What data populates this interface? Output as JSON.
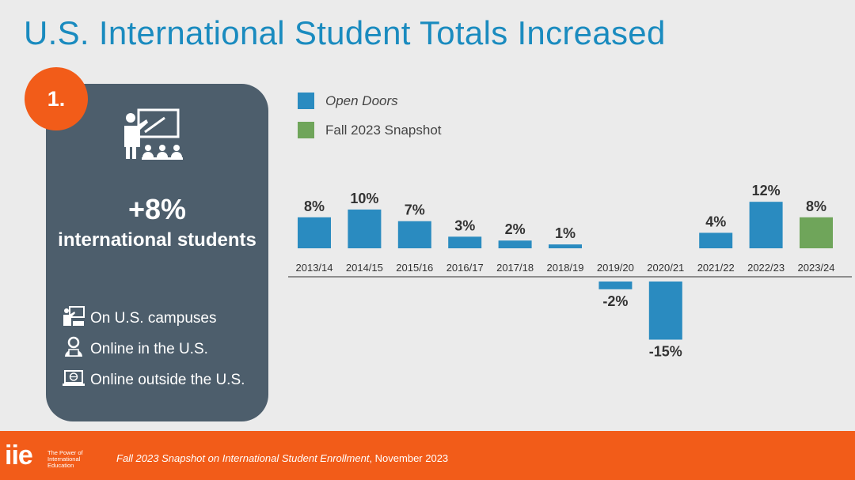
{
  "slide": {
    "title": "U.S. International Student Totals Increased"
  },
  "panel": {
    "badge": "1.",
    "big_value": "+8%",
    "big_label": "international students",
    "icon": "teacher-presentation-icon",
    "modes": [
      {
        "label": "On U.S. campuses",
        "icon": "classroom-icon"
      },
      {
        "label": "Online in the U.S.",
        "icon": "online-user-icon"
      },
      {
        "label": "Online outside the U.S.",
        "icon": "laptop-globe-icon"
      }
    ]
  },
  "legend": [
    {
      "label": "Open Doors",
      "color": "#2a8bc0",
      "italic": true
    },
    {
      "label": "Fall 2023 Snapshot",
      "color": "#6fa55a",
      "italic": false
    }
  ],
  "chart_data": {
    "type": "bar",
    "categories": [
      "2013/14",
      "2014/15",
      "2015/16",
      "2016/17",
      "2017/18",
      "2018/19",
      "2019/20",
      "2020/21",
      "2021/22",
      "2022/23",
      "2023/24"
    ],
    "series": [
      {
        "name": "Open Doors",
        "color": "#2a8bc0",
        "values": [
          8,
          10,
          7,
          3,
          2,
          1,
          -2,
          -15,
          4,
          12,
          null
        ]
      },
      {
        "name": "Fall 2023 Snapshot",
        "color": "#6fa55a",
        "values": [
          null,
          null,
          null,
          null,
          null,
          null,
          null,
          null,
          null,
          null,
          8
        ]
      }
    ],
    "data_labels": [
      "8%",
      "10%",
      "7%",
      "3%",
      "2%",
      "1%",
      "-2%",
      "-15%",
      "4%",
      "12%",
      "8%"
    ],
    "ylim": [
      -15,
      12
    ],
    "grid": false,
    "legend_position": "top-left"
  },
  "footer": {
    "logo": "iie",
    "tagline": "The Power of International Education",
    "citation_italic": "Fall 2023 Snapshot on International Student Enrollment",
    "citation_rest": ", November 2023"
  }
}
